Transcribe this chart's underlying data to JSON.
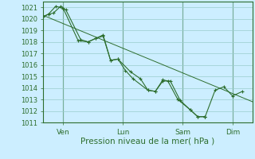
{
  "xlabel": "Pression niveau de la mer( hPa )",
  "background_color": "#cceeff",
  "grid_color": "#99cccc",
  "line_color": "#2d6e2d",
  "ylim": [
    1011,
    1021.5
  ],
  "yticks": [
    1011,
    1012,
    1013,
    1014,
    1015,
    1016,
    1017,
    1018,
    1019,
    1020,
    1021
  ],
  "xtick_labels": [
    "Ven",
    "Lun",
    "Sam",
    "Dim"
  ],
  "xtick_positions": [
    16.0,
    64.0,
    112.0,
    152.0
  ],
  "xlim": [
    0,
    168
  ],
  "series1": [
    [
      0,
      1020.2
    ],
    [
      4,
      1020.4
    ],
    [
      8,
      1020.5
    ],
    [
      14,
      1021.1
    ],
    [
      18,
      1020.8
    ],
    [
      30,
      1018.2
    ],
    [
      36,
      1018.0
    ],
    [
      42,
      1018.3
    ],
    [
      48,
      1018.6
    ],
    [
      54,
      1016.4
    ],
    [
      60,
      1016.5
    ],
    [
      66,
      1015.5
    ],
    [
      72,
      1014.8
    ],
    [
      84,
      1013.8
    ],
    [
      90,
      1013.7
    ],
    [
      96,
      1014.7
    ],
    [
      100,
      1014.6
    ],
    [
      108,
      1013.0
    ],
    [
      118,
      1012.1
    ],
    [
      124,
      1011.5
    ],
    [
      130,
      1011.5
    ]
  ],
  "series2": [
    [
      0,
      1020.2
    ],
    [
      4,
      1020.4
    ],
    [
      10,
      1021.1
    ],
    [
      16,
      1020.9
    ],
    [
      28,
      1018.1
    ],
    [
      36,
      1018.0
    ],
    [
      42,
      1018.3
    ],
    [
      48,
      1018.5
    ],
    [
      54,
      1016.4
    ],
    [
      60,
      1016.5
    ],
    [
      70,
      1015.4
    ],
    [
      78,
      1014.8
    ],
    [
      84,
      1013.8
    ],
    [
      90,
      1013.7
    ],
    [
      96,
      1014.6
    ],
    [
      102,
      1014.6
    ],
    [
      110,
      1012.9
    ],
    [
      118,
      1012.1
    ],
    [
      124,
      1011.5
    ],
    [
      130,
      1011.5
    ]
  ],
  "trend_line": [
    [
      0,
      1020.3
    ],
    [
      168,
      1012.8
    ]
  ],
  "series3": [
    [
      130,
      1011.5
    ],
    [
      138,
      1013.8
    ],
    [
      145,
      1014.1
    ],
    [
      152,
      1013.3
    ],
    [
      160,
      1013.7
    ]
  ]
}
